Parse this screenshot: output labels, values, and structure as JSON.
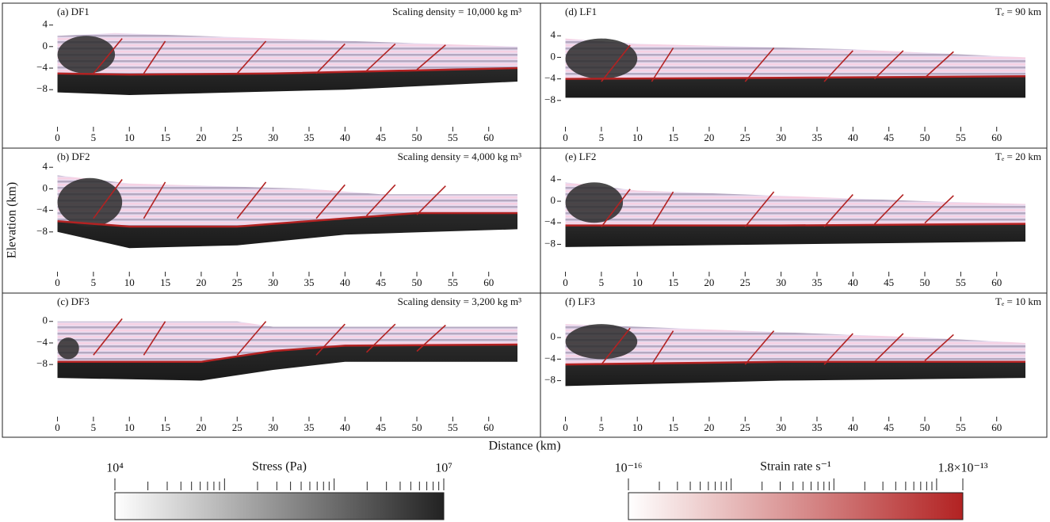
{
  "x_label": "Distance (km)",
  "y_label": "Elevation (km)",
  "chart_data": [
    {
      "type": "section",
      "title": "(a) DF1",
      "annotation": "Scaling density = 10,000 kg m³",
      "xlim": [
        -0.5,
        64
      ],
      "ylim": [
        -14,
        6
      ],
      "xticks": [
        0,
        5,
        10,
        15,
        20,
        25,
        30,
        35,
        40,
        45,
        50,
        55,
        60
      ],
      "yticks": [
        4,
        0,
        {
          "value": -4,
          "label": "−4"
        },
        {
          "value": -8,
          "label": "−8"
        }
      ]
    },
    {
      "type": "section",
      "title": "(b) DF2",
      "annotation": "Scaling density = 4,000 kg m³",
      "xlim": [
        -0.5,
        64
      ],
      "ylim": [
        -14.5,
        5.5
      ],
      "xticks": [
        0,
        5,
        10,
        15,
        20,
        25,
        30,
        35,
        40,
        45,
        50,
        55,
        60
      ],
      "yticks": [
        4,
        0,
        {
          "value": -4,
          "label": "−4"
        },
        {
          "value": -8,
          "label": "−8"
        }
      ]
    },
    {
      "type": "section",
      "title": "(c) DF3",
      "annotation": "Scaling density = 3,200 kg m³",
      "xlim": [
        -0.5,
        64
      ],
      "ylim": [
        -16.8,
        3.2
      ],
      "xticks": [
        0,
        5,
        10,
        15,
        20,
        25,
        30,
        35,
        40,
        45,
        50,
        55,
        60
      ],
      "yticks": [
        0,
        {
          "value": -4,
          "label": "−4"
        },
        {
          "value": -8,
          "label": "−8"
        }
      ]
    },
    {
      "type": "section",
      "title": "(d) LF1",
      "annotation": "Tₑ = 90 km",
      "xlim": [
        -0.5,
        64
      ],
      "ylim": [
        -12,
        8
      ],
      "xticks": [
        0,
        5,
        10,
        15,
        20,
        25,
        30,
        35,
        40,
        45,
        50,
        55,
        60
      ],
      "yticks": [
        4,
        0,
        {
          "value": -4,
          "label": "−4"
        },
        {
          "value": -8,
          "label": "−8"
        }
      ]
    },
    {
      "type": "section",
      "title": "(e) LF2",
      "annotation": "Tₑ = 20 km",
      "xlim": [
        -0.5,
        64
      ],
      "ylim": [
        -12.2,
        7.8
      ],
      "xticks": [
        0,
        5,
        10,
        15,
        20,
        25,
        30,
        35,
        40,
        45,
        50,
        55,
        60
      ],
      "yticks": [
        4,
        0,
        {
          "value": -4,
          "label": "−4"
        },
        {
          "value": -8,
          "label": "−8"
        }
      ]
    },
    {
      "type": "section",
      "title": "(f) LF3",
      "annotation": "Tₑ = 10 km",
      "xlim": [
        -0.5,
        64
      ],
      "ylim": [
        -13.8,
        6.2
      ],
      "xticks": [
        0,
        5,
        10,
        15,
        20,
        25,
        30,
        35,
        40,
        45,
        50,
        55,
        60
      ],
      "yticks": [
        0,
        {
          "value": -4,
          "label": "−4"
        },
        {
          "value": -8,
          "label": "−8"
        }
      ]
    }
  ],
  "colorbars": [
    {
      "title": "Stress (Pa)",
      "xlim": [
        10000,
        10000000
      ],
      "xticks": [
        {
          "value": 10000,
          "label": "10⁴"
        },
        {
          "value": 10000000,
          "label": "10⁷"
        }
      ],
      "colors": [
        "#ffffff",
        "#222222"
      ]
    },
    {
      "title": "Strain rate s⁻¹",
      "xlim": [
        1e-16,
        1.8e-13
      ],
      "xticks": [
        {
          "value": 1e-16,
          "label": "10⁻¹⁶"
        },
        {
          "value": 1.8e-13,
          "label": "1.8×10⁻¹³"
        }
      ],
      "colors": [
        "#ffffff",
        "#b22222"
      ]
    }
  ]
}
